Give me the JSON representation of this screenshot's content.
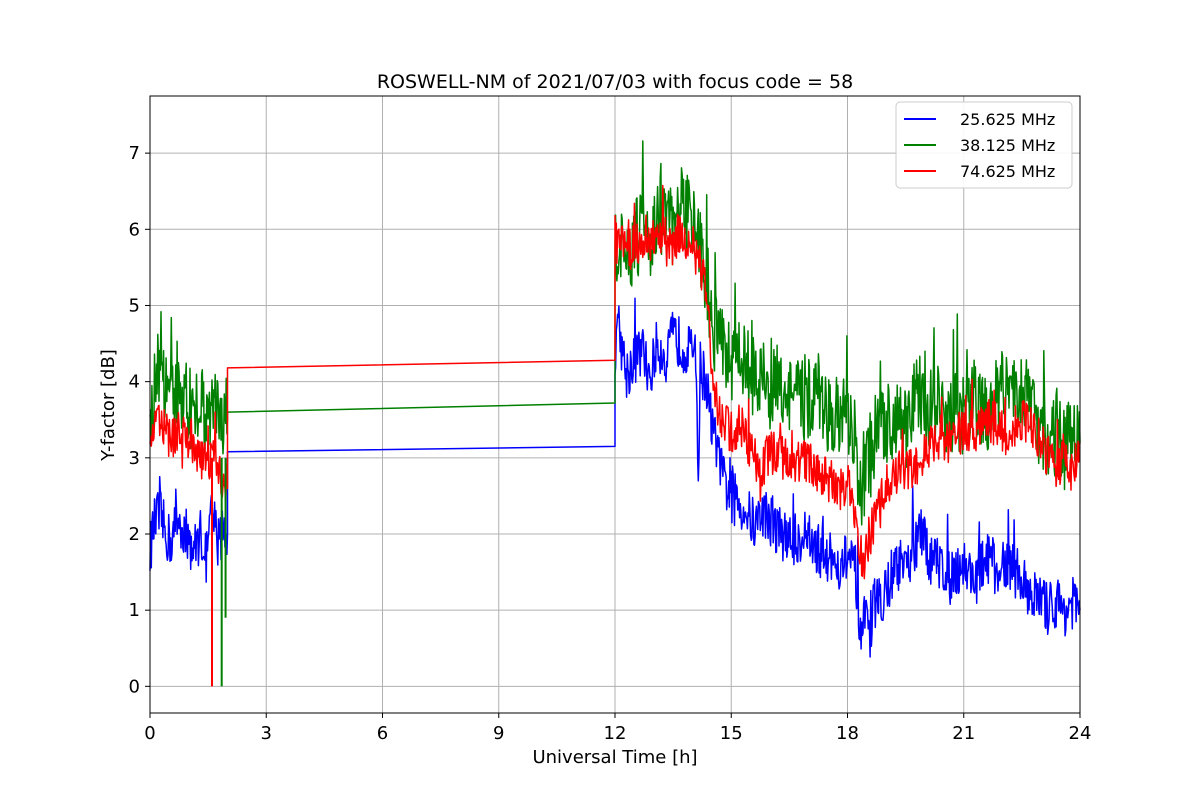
{
  "chart_data": {
    "type": "line",
    "title": "ROSWELL-NM of 2021/07/03 with focus code = 58",
    "xlabel": "Universal Time [h]",
    "ylabel": "Y-factor [dB]",
    "xlim": [
      0,
      24
    ],
    "ylim": [
      -0.35,
      7.75
    ],
    "xticks": [
      0,
      3,
      6,
      9,
      12,
      15,
      18,
      21,
      24
    ],
    "yticks": [
      0,
      1,
      2,
      3,
      4,
      5,
      6,
      7
    ],
    "grid": true,
    "legend_position": "top-right",
    "series": [
      {
        "name": "25.625 MHz",
        "color": "#0000ff",
        "x": [
          0,
          0.1,
          0.25,
          0.4,
          0.55,
          0.7,
          0.85,
          1.0,
          1.15,
          1.3,
          1.45,
          1.6,
          1.75,
          1.9,
          2.0,
          2.0,
          12.0,
          12.0,
          12.1,
          12.3,
          12.5,
          12.7,
          12.9,
          13.1,
          13.3,
          13.5,
          13.7,
          13.9,
          14.1,
          14.15,
          14.2,
          14.35,
          14.5,
          14.65,
          14.8,
          15.0,
          15.2,
          15.4,
          15.6,
          15.8,
          16.0,
          16.3,
          16.6,
          16.9,
          17.2,
          17.5,
          17.8,
          18.0,
          18.2,
          18.35,
          18.45,
          18.55,
          18.7,
          18.9,
          19.1,
          19.3,
          19.5,
          19.7,
          19.9,
          20.1,
          20.4,
          20.7,
          21.0,
          21.3,
          21.6,
          21.9,
          22.2,
          22.5,
          22.8,
          23.0,
          23.2,
          23.4,
          23.6,
          23.8,
          24.0
        ],
        "y": [
          1.8,
          2.1,
          2.3,
          2.0,
          1.9,
          2.2,
          2.1,
          1.9,
          1.8,
          2.0,
          1.7,
          2.3,
          1.9,
          2.1,
          2.0,
          3.08,
          3.15,
          4.3,
          4.7,
          4.1,
          4.3,
          4.4,
          4.1,
          4.5,
          4.3,
          4.6,
          4.5,
          4.4,
          4.3,
          2.6,
          4.2,
          4.0,
          3.4,
          3.1,
          2.7,
          2.5,
          2.4,
          2.3,
          2.1,
          2.3,
          2.2,
          2.0,
          1.9,
          2.0,
          1.8,
          1.7,
          1.6,
          1.7,
          1.5,
          0.5,
          0.9,
          0.6,
          1.1,
          1.2,
          1.4,
          1.6,
          1.5,
          1.8,
          2.0,
          1.7,
          1.6,
          1.5,
          1.6,
          1.4,
          1.7,
          1.5,
          1.6,
          1.4,
          1.2,
          1.1,
          1.0,
          1.1,
          1.0,
          1.1,
          1.0
        ],
        "noise": 0.35
      },
      {
        "name": "38.125 MHz",
        "color": "#008000",
        "x": [
          0,
          0.1,
          0.25,
          0.4,
          0.55,
          0.7,
          0.85,
          1.0,
          1.15,
          1.3,
          1.45,
          1.6,
          1.75,
          1.9,
          2.0,
          2.0,
          12.0,
          12.0,
          12.1,
          12.3,
          12.5,
          12.7,
          12.9,
          13.1,
          13.3,
          13.5,
          13.7,
          13.9,
          14.1,
          14.3,
          14.5,
          14.65,
          14.8,
          15.0,
          15.2,
          15.4,
          15.6,
          15.8,
          16.0,
          16.3,
          16.6,
          16.9,
          17.2,
          17.5,
          17.8,
          18.0,
          18.2,
          18.35,
          18.45,
          18.55,
          18.7,
          18.9,
          19.1,
          19.3,
          19.5,
          19.7,
          19.9,
          20.1,
          20.4,
          20.7,
          21.0,
          21.3,
          21.6,
          21.9,
          22.2,
          22.5,
          22.8,
          23.0,
          23.2,
          23.4,
          23.6,
          23.8,
          24.0
        ],
        "y": [
          3.2,
          3.9,
          4.2,
          3.8,
          3.6,
          4.0,
          3.9,
          3.7,
          3.5,
          3.8,
          3.3,
          3.9,
          3.6,
          3.5,
          3.5,
          3.6,
          3.72,
          6.0,
          5.7,
          5.6,
          5.8,
          6.0,
          5.9,
          6.1,
          6.2,
          6.0,
          6.3,
          6.2,
          6.0,
          5.5,
          4.8,
          4.6,
          4.5,
          4.3,
          4.4,
          4.2,
          4.0,
          4.1,
          3.9,
          4.0,
          3.8,
          3.7,
          3.9,
          3.6,
          3.5,
          3.5,
          3.2,
          2.6,
          2.9,
          3.0,
          3.2,
          3.4,
          3.5,
          3.6,
          3.4,
          3.7,
          3.8,
          3.6,
          3.7,
          3.5,
          3.6,
          3.8,
          3.5,
          3.9,
          3.7,
          4.0,
          3.6,
          3.4,
          3.2,
          3.5,
          3.1,
          3.3,
          3.2
        ],
        "noise": 0.55
      },
      {
        "name": "74.625 MHz",
        "color": "#ff0000",
        "x": [
          0,
          0.1,
          0.25,
          0.4,
          0.55,
          0.7,
          0.85,
          1.0,
          1.15,
          1.3,
          1.45,
          1.6,
          1.75,
          1.9,
          2.0,
          2.0,
          12.0,
          12.0,
          12.1,
          12.3,
          12.5,
          12.7,
          12.9,
          13.1,
          13.3,
          13.5,
          13.7,
          13.9,
          14.1,
          14.3,
          14.5,
          14.65,
          14.8,
          15.0,
          15.2,
          15.4,
          15.6,
          15.8,
          16.0,
          16.3,
          16.6,
          16.9,
          17.2,
          17.5,
          17.8,
          18.0,
          18.2,
          18.35,
          18.45,
          18.55,
          18.7,
          18.9,
          19.1,
          19.3,
          19.5,
          19.7,
          19.9,
          20.1,
          20.4,
          20.7,
          21.0,
          21.3,
          21.6,
          21.9,
          22.2,
          22.5,
          22.8,
          23.0,
          23.2,
          23.4,
          23.6,
          23.8,
          24.0
        ],
        "y": [
          3.3,
          3.4,
          3.5,
          3.3,
          3.2,
          3.4,
          3.3,
          3.2,
          3.1,
          3.0,
          2.9,
          3.1,
          2.9,
          2.7,
          2.6,
          4.18,
          4.28,
          5.9,
          5.8,
          5.7,
          5.8,
          5.9,
          5.8,
          6.0,
          5.9,
          5.8,
          6.0,
          5.8,
          5.7,
          5.4,
          4.2,
          3.6,
          3.5,
          3.3,
          3.4,
          3.2,
          3.0,
          2.9,
          3.1,
          3.0,
          2.9,
          3.0,
          2.8,
          2.7,
          2.6,
          2.7,
          2.3,
          1.7,
          1.6,
          1.9,
          2.2,
          2.5,
          2.7,
          2.8,
          2.9,
          2.8,
          3.0,
          3.1,
          3.3,
          3.2,
          3.4,
          3.3,
          3.5,
          3.4,
          3.3,
          3.5,
          3.4,
          3.2,
          3.0,
          2.9,
          3.0,
          2.8,
          3.2
        ],
        "noise": 0.3
      }
    ],
    "spikes": [
      {
        "series": 2,
        "x": 1.6,
        "y": 0.0
      },
      {
        "series": 1,
        "x": 1.85,
        "y": 0.0
      },
      {
        "series": 1,
        "x": 1.95,
        "y": 0.9
      }
    ]
  }
}
